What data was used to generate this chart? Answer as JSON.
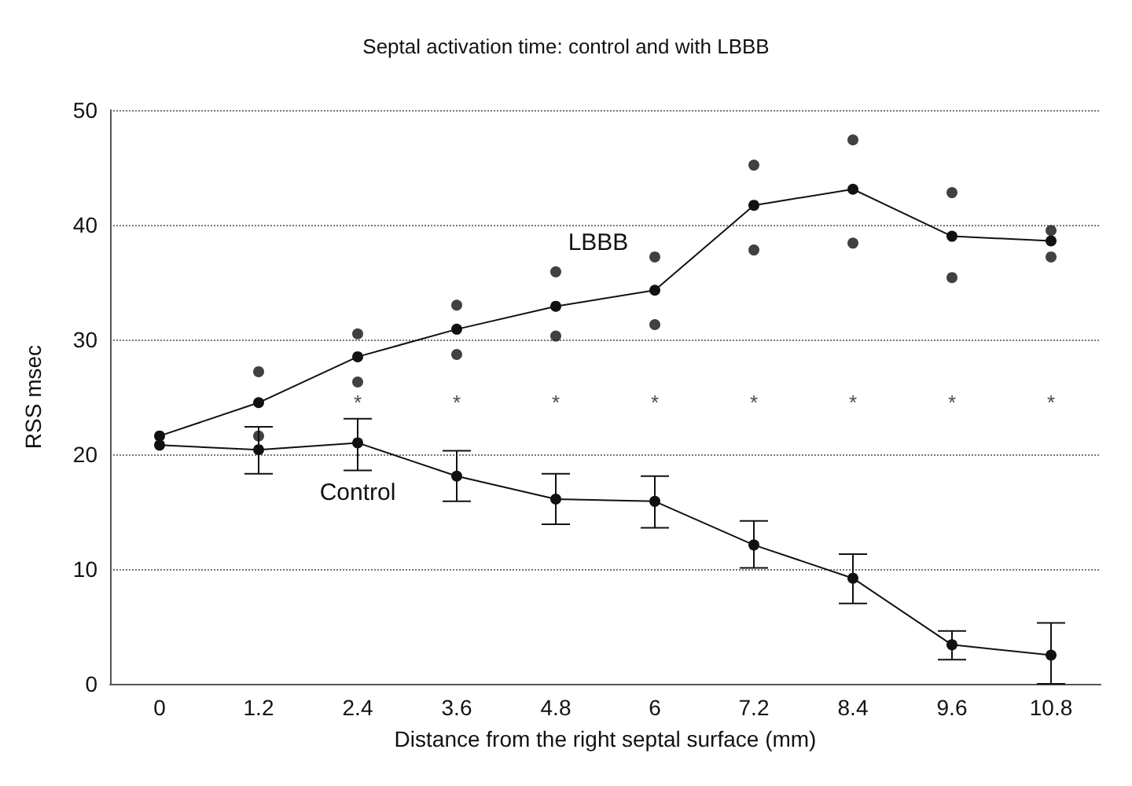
{
  "chart_data": {
    "type": "line",
    "title": "Septal activation time: control and with LBBB",
    "xlabel": "Distance from the right septal surface (mm)",
    "ylabel": "RSS msec",
    "categories": [
      "0",
      "1.2",
      "2.4",
      "3.6",
      "4.8",
      "6",
      "7.2",
      "8.4",
      "9.6",
      "10.8"
    ],
    "series": [
      {
        "name": "LBBB",
        "color": "#111111",
        "values": [
          21.6,
          24.5,
          28.5,
          30.9,
          32.9,
          34.3,
          41.7,
          43.1,
          39.0,
          38.6
        ]
      },
      {
        "name": "Control",
        "color": "#111111",
        "values": [
          20.8,
          20.4,
          21.0,
          18.1,
          16.1,
          15.9,
          12.1,
          9.2,
          3.4,
          2.5
        ],
        "errors": [
          null,
          [
            18.3,
            22.4
          ],
          [
            18.6,
            23.1
          ],
          [
            15.9,
            20.3
          ],
          [
            13.9,
            18.3
          ],
          [
            13.6,
            18.1
          ],
          [
            10.1,
            14.2
          ],
          [
            7.0,
            11.3
          ],
          [
            2.1,
            4.6
          ],
          [
            0,
            5.3
          ]
        ]
      },
      {
        "type": "scatter",
        "color": "#111111",
        "x": [
          "1.2",
          "1.2",
          "2.4",
          "2.4",
          "3.6",
          "3.6",
          "4.8",
          "4.8",
          "6",
          "6",
          "7.2",
          "7.2",
          "8.4",
          "8.4",
          "9.6",
          "9.6",
          "10.8",
          "10.8"
        ],
        "values": [
          27.2,
          21.6,
          30.5,
          26.3,
          33.0,
          28.7,
          35.9,
          30.3,
          37.2,
          31.3,
          45.2,
          37.8,
          47.4,
          38.4,
          42.8,
          35.4,
          39.5,
          37.2
        ]
      }
    ],
    "annotations": [
      "*",
      "*",
      "*",
      "*",
      "*",
      "*",
      "*",
      "*"
    ],
    "ylim": [
      0,
      50
    ],
    "yticks": [
      0,
      10,
      20,
      30,
      40,
      50
    ],
    "grid": "y",
    "legend": false,
    "marker": "circle",
    "line_style": "solid"
  }
}
